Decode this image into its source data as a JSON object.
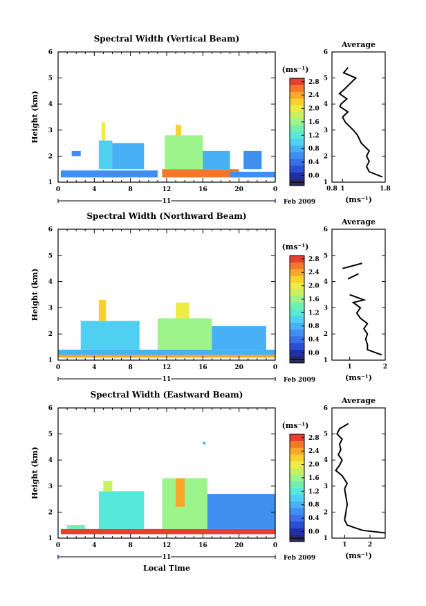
{
  "figure": {
    "x_axis_label": "Local Time",
    "date_label": "Feb 2009",
    "day_label": "11"
  },
  "colorbar": {
    "unit": "(ms⁻¹)",
    "ticks": [
      "2.8",
      "2.4",
      "2.0",
      "1.6",
      "1.2",
      "0.8",
      "0.4",
      "0.0"
    ],
    "colors": [
      "#2b2b5e",
      "#1f2fa8",
      "#2a4fd6",
      "#3a6fe8",
      "#3f8ff0",
      "#48b0f4",
      "#4fd0f0",
      "#56e8d8",
      "#70f0b0",
      "#9cf48a",
      "#c8f060",
      "#ecec44",
      "#f8d030",
      "#f8a828",
      "#f07828",
      "#e84030"
    ]
  },
  "chart_data": [
    {
      "type": "heatmap",
      "title": "Spectral Width (Vertical Beam)",
      "xlabel": "",
      "ylabel": "Height (km)",
      "xlim": [
        0,
        24
      ],
      "ylim": [
        1,
        6
      ],
      "x_ticks": [
        "0",
        "4",
        "8",
        "12",
        "16",
        "20",
        "0"
      ],
      "y_ticks": [
        "1",
        "2",
        "3",
        "4",
        "5",
        "6"
      ],
      "value_range": [
        0.0,
        3.0
      ],
      "blocks": [
        {
          "t": [
            0.3,
            11.0
          ],
          "h": [
            1.18,
            1.45
          ],
          "w": 0.8
        },
        {
          "t": [
            1.5,
            2.5
          ],
          "h": [
            2.0,
            2.2
          ],
          "w": 0.8
        },
        {
          "t": [
            4.5,
            6.0
          ],
          "h": [
            1.5,
            2.6
          ],
          "w": 1.2
        },
        {
          "t": [
            4.8,
            5.2
          ],
          "h": [
            2.6,
            3.3
          ],
          "w": 2.2
        },
        {
          "t": [
            6.0,
            9.5
          ],
          "h": [
            1.5,
            2.5
          ],
          "w": 1.0
        },
        {
          "t": [
            11.5,
            20.0
          ],
          "h": [
            1.18,
            1.5
          ],
          "w": 2.8
        },
        {
          "t": [
            11.8,
            16.0
          ],
          "h": [
            1.5,
            2.8
          ],
          "w": 1.8
        },
        {
          "t": [
            13.0,
            13.6
          ],
          "h": [
            2.8,
            3.2
          ],
          "w": 2.4
        },
        {
          "t": [
            16.0,
            19.0
          ],
          "h": [
            1.5,
            2.2
          ],
          "w": 1.0
        },
        {
          "t": [
            19.0,
            24.0
          ],
          "h": [
            1.18,
            1.4
          ],
          "w": 0.9
        },
        {
          "t": [
            20.5,
            22.5
          ],
          "h": [
            1.5,
            2.2
          ],
          "w": 0.8
        }
      ],
      "average": {
        "xlim": [
          0.8,
          1.8
        ],
        "x_ticks": [
          "0.8",
          "1",
          "1.8"
        ],
        "title": "Average",
        "xlabel": "(ms⁻¹)",
        "heights": [
          1.2,
          1.4,
          1.6,
          1.8,
          2.0,
          2.2,
          2.5,
          2.8,
          3.0,
          3.3,
          3.5,
          3.7,
          3.9,
          4.0,
          4.2,
          4.4,
          4.6,
          4.8,
          5.0,
          5.2,
          5.4
        ],
        "values": [
          1.75,
          1.5,
          1.45,
          1.5,
          1.45,
          1.5,
          1.35,
          1.28,
          1.2,
          1.05,
          1.0,
          1.1,
          0.95,
          0.97,
          1.08,
          0.94,
          1.05,
          1.15,
          1.25,
          1.02,
          1.1
        ]
      }
    },
    {
      "type": "heatmap",
      "title": "Spectral Width (Northward Beam)",
      "xlabel": "",
      "ylabel": "Height (km)",
      "xlim": [
        0,
        24
      ],
      "ylim": [
        1,
        6
      ],
      "x_ticks": [
        "0",
        "4",
        "8",
        "12",
        "16",
        "20",
        "0"
      ],
      "y_ticks": [
        "1",
        "2",
        "3",
        "4",
        "5",
        "6"
      ],
      "value_range": [
        0.0,
        3.0
      ],
      "blocks": [
        {
          "t": [
            0.0,
            24.0
          ],
          "h": [
            1.1,
            1.4
          ],
          "w": 1.0
        },
        {
          "t": [
            2.5,
            9.0
          ],
          "h": [
            1.4,
            2.5
          ],
          "w": 1.2
        },
        {
          "t": [
            4.5,
            5.3
          ],
          "h": [
            2.5,
            3.3
          ],
          "w": 2.4
        },
        {
          "t": [
            11.0,
            17.0
          ],
          "h": [
            1.4,
            2.6
          ],
          "w": 1.8
        },
        {
          "t": [
            13.0,
            14.5
          ],
          "h": [
            2.6,
            3.2
          ],
          "w": 2.2
        },
        {
          "t": [
            17.0,
            23.0
          ],
          "h": [
            1.4,
            2.3
          ],
          "w": 1.0
        },
        {
          "t": [
            0.0,
            24.0
          ],
          "h": [
            1.1,
            1.2
          ],
          "w": 2.6
        }
      ],
      "average": {
        "xlim": [
          0.5,
          2.0
        ],
        "x_ticks": [
          "1",
          "2"
        ],
        "title": "Average",
        "xlabel": "(ms⁻¹)",
        "heights": [
          1.2,
          1.4,
          1.6,
          1.8,
          2.0,
          2.2,
          2.4,
          2.6,
          2.8,
          3.0,
          3.2,
          3.3,
          3.5
        ],
        "values": [
          1.9,
          1.5,
          1.5,
          1.45,
          1.5,
          1.4,
          1.5,
          1.3,
          1.2,
          1.3,
          1.1,
          1.4,
          1.0
        ],
        "upper_segments": [
          [
            [
              0.95,
              4.1
            ],
            [
              1.25,
              4.3
            ]
          ],
          [
            [
              0.8,
              4.5
            ],
            [
              1.35,
              4.7
            ]
          ]
        ]
      }
    },
    {
      "type": "heatmap",
      "title": "Spectral Width (Eastward Beam)",
      "xlabel": "Local Time",
      "ylabel": "Height (km)",
      "xlim": [
        0,
        24
      ],
      "ylim": [
        1,
        6
      ],
      "x_ticks": [
        "0",
        "4",
        "8",
        "12",
        "16",
        "20",
        "0"
      ],
      "y_ticks": [
        "1",
        "2",
        "3",
        "4",
        "5",
        "6"
      ],
      "value_range": [
        0.0,
        3.0
      ],
      "blocks": [
        {
          "t": [
            0.3,
            24.0
          ],
          "h": [
            1.15,
            1.35
          ],
          "w": 2.9
        },
        {
          "t": [
            1.0,
            3.0
          ],
          "h": [
            1.35,
            1.5
          ],
          "w": 1.6
        },
        {
          "t": [
            4.5,
            9.5
          ],
          "h": [
            1.35,
            2.8
          ],
          "w": 1.4
        },
        {
          "t": [
            5.0,
            6.0
          ],
          "h": [
            2.8,
            3.2
          ],
          "w": 2.0
        },
        {
          "t": [
            11.5,
            16.5
          ],
          "h": [
            1.35,
            3.3
          ],
          "w": 1.8
        },
        {
          "t": [
            13.0,
            14.0
          ],
          "h": [
            2.2,
            3.3
          ],
          "w": 2.6
        },
        {
          "t": [
            16.5,
            24.0
          ],
          "h": [
            1.35,
            2.7
          ],
          "w": 0.8
        },
        {
          "t": [
            16.0,
            16.3
          ],
          "h": [
            4.6,
            4.7
          ],
          "w": 1.0
        }
      ],
      "average": {
        "xlim": [
          0.5,
          2.6
        ],
        "x_ticks": [
          "1",
          "2"
        ],
        "title": "Average",
        "xlabel": "(ms⁻¹)",
        "heights": [
          1.2,
          1.3,
          1.5,
          1.7,
          2.0,
          2.3,
          2.6,
          2.9,
          3.1,
          3.4,
          3.6,
          3.8,
          4.0,
          4.2,
          4.4,
          4.6,
          4.8,
          5.0,
          5.2,
          5.4
        ],
        "values": [
          2.6,
          1.7,
          1.1,
          1.0,
          1.05,
          1.1,
          1.05,
          1.0,
          1.1,
          0.9,
          0.65,
          0.8,
          0.9,
          0.75,
          0.85,
          0.8,
          0.9,
          0.7,
          0.8,
          1.15
        ]
      }
    }
  ]
}
